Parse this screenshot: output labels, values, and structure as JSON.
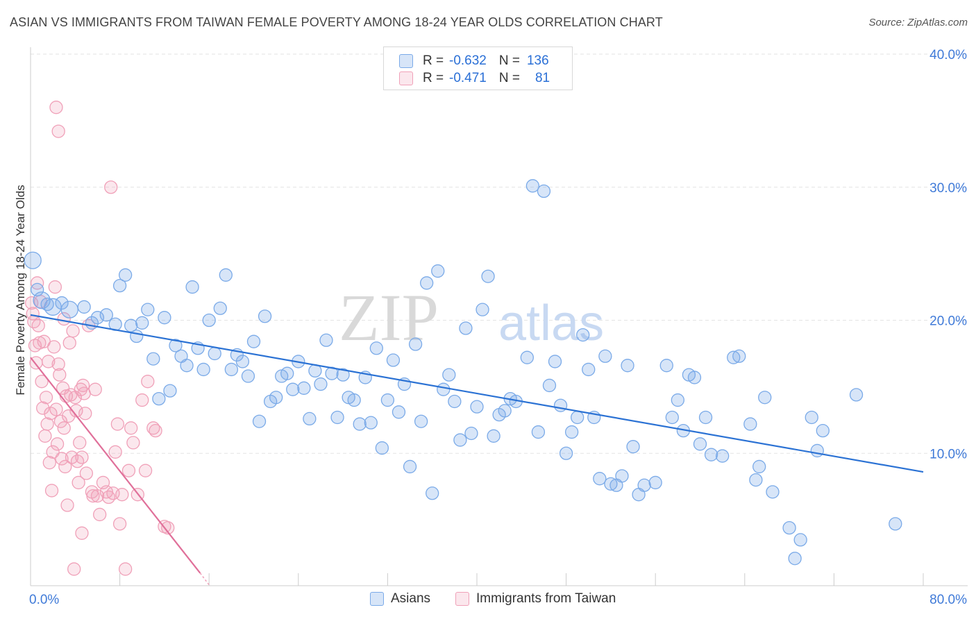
{
  "title": "ASIAN VS IMMIGRANTS FROM TAIWAN FEMALE POVERTY AMONG 18-24 YEAR OLDS CORRELATION CHART",
  "source": "Source: ZipAtlas.com",
  "watermark": {
    "left": "ZIP",
    "right": "atlas"
  },
  "legend_top": [
    {
      "r_label": "R =",
      "r_value": "-0.632",
      "n_label": "N =",
      "n_value": "136",
      "color": "#7aaae8"
    },
    {
      "r_label": "R =",
      "r_value": "-0.471",
      "n_label": "N =",
      "n_value": "81",
      "color": "#f0a0b8"
    }
  ],
  "legend_bottom": [
    {
      "label": "Asians",
      "color": "#7aaae8"
    },
    {
      "label": "Immigrants from Taiwan",
      "color": "#f0a0b8"
    }
  ],
  "colors": {
    "blue_fill": "rgba(122,170,232,0.30)",
    "blue_stroke": "#7aaae8",
    "blue_line": "#2b72d4",
    "pink_fill": "rgba(240,160,184,0.25)",
    "pink_stroke": "#f0a0b8",
    "pink_line": "#e0709a",
    "tick_text": "#3f7ad8"
  },
  "chart_data": {
    "type": "scatter",
    "title": "ASIAN VS IMMIGRANTS FROM TAIWAN FEMALE POVERTY AMONG 18-24 YEAR OLDS CORRELATION CHART",
    "xlabel": "",
    "ylabel": "Female Poverty Among 18-24 Year Olds",
    "xlim": [
      0,
      80
    ],
    "ylim": [
      0,
      40
    ],
    "x_tick_labels": [
      "0.0%",
      "80.0%"
    ],
    "y_ticks": [
      10,
      20,
      30,
      40
    ],
    "y_tick_labels": [
      "10.0%",
      "20.0%",
      "30.0%",
      "40.0%"
    ],
    "grid": "horizontal dashed",
    "legend": "top-center",
    "series": [
      {
        "name": "Asians",
        "r": -0.632,
        "n": 136,
        "trend": {
          "x": [
            0,
            80
          ],
          "y": [
            20.4,
            8.6
          ]
        },
        "points": [
          [
            0.2,
            24.5,
            2
          ],
          [
            0.6,
            22.3,
            1
          ],
          [
            1.0,
            21.5,
            2
          ],
          [
            1.5,
            21.2,
            1
          ],
          [
            2.0,
            21.0,
            2
          ],
          [
            2.8,
            21.3,
            1
          ],
          [
            3.5,
            20.8,
            2
          ],
          [
            4.8,
            21.0,
            1
          ],
          [
            5.5,
            19.8,
            1
          ],
          [
            6.0,
            20.2,
            1
          ],
          [
            6.8,
            20.4,
            1
          ],
          [
            7.6,
            19.7,
            1
          ],
          [
            8.0,
            22.6,
            1
          ],
          [
            8.5,
            23.4,
            1
          ],
          [
            9.0,
            19.6,
            1
          ],
          [
            9.5,
            18.8,
            1
          ],
          [
            10.0,
            19.8,
            1
          ],
          [
            10.5,
            20.8,
            1
          ],
          [
            11.0,
            17.1,
            1
          ],
          [
            11.5,
            14.1,
            1
          ],
          [
            12.0,
            20.2,
            1
          ],
          [
            12.5,
            14.7,
            1
          ],
          [
            13.0,
            18.1,
            1
          ],
          [
            13.5,
            17.3,
            1
          ],
          [
            14.0,
            16.6,
            1
          ],
          [
            14.5,
            22.5,
            1
          ],
          [
            15.0,
            17.9,
            1
          ],
          [
            15.5,
            16.3,
            1
          ],
          [
            16.0,
            20.0,
            1
          ],
          [
            16.5,
            17.5,
            1
          ],
          [
            17.0,
            20.9,
            1
          ],
          [
            17.5,
            23.4,
            1
          ],
          [
            18.0,
            16.3,
            1
          ],
          [
            18.5,
            17.4,
            1
          ],
          [
            19.0,
            16.9,
            1
          ],
          [
            19.5,
            15.8,
            1
          ],
          [
            20.0,
            18.4,
            1
          ],
          [
            20.5,
            12.4,
            1
          ],
          [
            21.0,
            20.3,
            1
          ],
          [
            21.5,
            13.9,
            1
          ],
          [
            22.0,
            14.2,
            1
          ],
          [
            22.5,
            15.8,
            1
          ],
          [
            23.0,
            16.0,
            1
          ],
          [
            23.5,
            14.8,
            1
          ],
          [
            24.0,
            16.9,
            1
          ],
          [
            24.5,
            14.9,
            1
          ],
          [
            25.0,
            12.6,
            1
          ],
          [
            25.5,
            16.2,
            1
          ],
          [
            26.0,
            15.2,
            1
          ],
          [
            26.5,
            18.5,
            1
          ],
          [
            27.0,
            16.0,
            1
          ],
          [
            27.5,
            12.7,
            1
          ],
          [
            28.0,
            15.9,
            1
          ],
          [
            28.5,
            14.2,
            1
          ],
          [
            29.0,
            14.0,
            1
          ],
          [
            29.5,
            12.2,
            1
          ],
          [
            30.0,
            15.7,
            1
          ],
          [
            30.5,
            12.3,
            1
          ],
          [
            31.0,
            17.9,
            1
          ],
          [
            31.5,
            10.4,
            1
          ],
          [
            32.0,
            14.0,
            1
          ],
          [
            32.5,
            17.0,
            1
          ],
          [
            33.0,
            13.1,
            1
          ],
          [
            33.5,
            15.2,
            1
          ],
          [
            34.0,
            9.0,
            1
          ],
          [
            34.5,
            18.2,
            1
          ],
          [
            35.0,
            12.4,
            1
          ],
          [
            35.5,
            22.8,
            1
          ],
          [
            36.0,
            7.0,
            1
          ],
          [
            36.5,
            23.7,
            1
          ],
          [
            37.0,
            14.8,
            1
          ],
          [
            37.5,
            15.9,
            1
          ],
          [
            38.0,
            13.9,
            1
          ],
          [
            38.5,
            11.0,
            1
          ],
          [
            39.0,
            19.4,
            1
          ],
          [
            39.5,
            11.5,
            1
          ],
          [
            40.0,
            13.5,
            1
          ],
          [
            40.5,
            20.8,
            1
          ],
          [
            41.0,
            23.3,
            1
          ],
          [
            41.5,
            11.3,
            1
          ],
          [
            42.0,
            12.9,
            1
          ],
          [
            42.5,
            13.2,
            1
          ],
          [
            43.0,
            14.1,
            1
          ],
          [
            43.5,
            13.9,
            1
          ],
          [
            44.5,
            17.2,
            1
          ],
          [
            45.0,
            30.1,
            1
          ],
          [
            45.5,
            11.6,
            1
          ],
          [
            46.0,
            29.7,
            1
          ],
          [
            46.5,
            15.1,
            1
          ],
          [
            47.0,
            16.9,
            1
          ],
          [
            47.5,
            13.6,
            1
          ],
          [
            48.0,
            10.0,
            1
          ],
          [
            48.5,
            11.6,
            1
          ],
          [
            49.0,
            12.7,
            1
          ],
          [
            49.5,
            18.9,
            1
          ],
          [
            50.0,
            16.3,
            1
          ],
          [
            50.5,
            12.7,
            1
          ],
          [
            51.0,
            8.1,
            1
          ],
          [
            51.5,
            17.3,
            1
          ],
          [
            52.0,
            7.7,
            1
          ],
          [
            52.5,
            7.6,
            1
          ],
          [
            53.0,
            8.3,
            1
          ],
          [
            53.5,
            16.6,
            1
          ],
          [
            54.0,
            10.5,
            1
          ],
          [
            54.5,
            6.9,
            1
          ],
          [
            55.0,
            7.6,
            1
          ],
          [
            56.0,
            7.8,
            1
          ],
          [
            57.0,
            16.6,
            1
          ],
          [
            57.5,
            12.7,
            1
          ],
          [
            58.0,
            14.0,
            1
          ],
          [
            58.5,
            11.7,
            1
          ],
          [
            59.0,
            15.9,
            1
          ],
          [
            59.5,
            15.7,
            1
          ],
          [
            60.0,
            10.7,
            1
          ],
          [
            60.5,
            12.7,
            1
          ],
          [
            61.0,
            9.9,
            1
          ],
          [
            62.0,
            9.8,
            1
          ],
          [
            63.0,
            17.2,
            1
          ],
          [
            63.5,
            17.3,
            1
          ],
          [
            64.5,
            12.2,
            1
          ],
          [
            65.0,
            8.0,
            1
          ],
          [
            65.3,
            9.0,
            1
          ],
          [
            65.8,
            14.2,
            1
          ],
          [
            66.5,
            7.1,
            1
          ],
          [
            68.0,
            4.4,
            1
          ],
          [
            68.5,
            2.1,
            1
          ],
          [
            69.0,
            3.5,
            1
          ],
          [
            70.0,
            12.7,
            1
          ],
          [
            70.5,
            10.2,
            1
          ],
          [
            71.0,
            11.7,
            1
          ],
          [
            74.0,
            14.4,
            1
          ],
          [
            77.5,
            4.7,
            1
          ]
        ]
      },
      {
        "name": "Immigrants from Taiwan",
        "r": -0.471,
        "n": 81,
        "trend": {
          "x": [
            0,
            15.2
          ],
          "y": [
            17.2,
            1.0
          ]
        },
        "points": [
          [
            0.1,
            21.3,
            1
          ],
          [
            0.2,
            20.5,
            1
          ],
          [
            0.3,
            19.9,
            1
          ],
          [
            0.4,
            18.1,
            1
          ],
          [
            0.5,
            16.8,
            1
          ],
          [
            0.6,
            22.8,
            1
          ],
          [
            0.7,
            19.6,
            1
          ],
          [
            0.8,
            18.3,
            1
          ],
          [
            0.9,
            21.4,
            1
          ],
          [
            1.0,
            15.4,
            1
          ],
          [
            1.1,
            13.4,
            1
          ],
          [
            1.2,
            18.4,
            1
          ],
          [
            1.3,
            11.3,
            1
          ],
          [
            1.4,
            14.2,
            1
          ],
          [
            1.5,
            12.2,
            1
          ],
          [
            1.6,
            16.9,
            1
          ],
          [
            1.7,
            9.3,
            1
          ],
          [
            1.8,
            13.0,
            1
          ],
          [
            1.9,
            7.2,
            1
          ],
          [
            2.0,
            10.1,
            1
          ],
          [
            2.1,
            18.0,
            1
          ],
          [
            2.2,
            22.5,
            1
          ],
          [
            2.3,
            13.3,
            1
          ],
          [
            2.4,
            10.7,
            1
          ],
          [
            2.5,
            16.7,
            1
          ],
          [
            2.6,
            15.9,
            1
          ],
          [
            2.7,
            12.4,
            1
          ],
          [
            2.8,
            9.6,
            1
          ],
          [
            2.9,
            14.9,
            1
          ],
          [
            3.0,
            20.1,
            1
          ],
          [
            3.1,
            9.0,
            1
          ],
          [
            3.2,
            14.3,
            1
          ],
          [
            3.3,
            6.1,
            1
          ],
          [
            3.4,
            12.8,
            1
          ],
          [
            3.5,
            18.3,
            1
          ],
          [
            3.6,
            14.4,
            1
          ],
          [
            3.7,
            9.7,
            1
          ],
          [
            3.8,
            19.2,
            1
          ],
          [
            3.9,
            1.3,
            1
          ],
          [
            4.0,
            14.2,
            1
          ],
          [
            4.1,
            13.2,
            1
          ],
          [
            4.2,
            9.4,
            1
          ],
          [
            4.3,
            7.8,
            1
          ],
          [
            4.4,
            10.8,
            1
          ],
          [
            4.5,
            14.8,
            1
          ],
          [
            4.6,
            4.0,
            1
          ],
          [
            4.7,
            15.1,
            1
          ],
          [
            4.8,
            14.5,
            1
          ],
          [
            4.9,
            13.0,
            1
          ],
          [
            5.0,
            8.5,
            1
          ],
          [
            5.2,
            19.6,
            1
          ],
          [
            5.5,
            7.1,
            1
          ],
          [
            5.8,
            14.8,
            1
          ],
          [
            6.0,
            6.8,
            1
          ],
          [
            6.2,
            5.4,
            1
          ],
          [
            6.5,
            7.8,
            1
          ],
          [
            6.8,
            7.1,
            1
          ],
          [
            7.0,
            6.7,
            1
          ],
          [
            7.2,
            30.0,
            1
          ],
          [
            7.4,
            7.0,
            1
          ],
          [
            7.6,
            10.1,
            1
          ],
          [
            7.8,
            12.2,
            1
          ],
          [
            8.0,
            4.7,
            1
          ],
          [
            8.2,
            6.9,
            1
          ],
          [
            8.5,
            1.3,
            1
          ],
          [
            8.8,
            8.7,
            1
          ],
          [
            9.0,
            11.9,
            1
          ],
          [
            9.2,
            10.8,
            1
          ],
          [
            9.6,
            6.9,
            1
          ],
          [
            10.0,
            14.0,
            1
          ],
          [
            10.3,
            8.7,
            1
          ],
          [
            10.5,
            15.4,
            1
          ],
          [
            11.0,
            11.9,
            1
          ],
          [
            11.2,
            11.7,
            1
          ],
          [
            12.0,
            4.5,
            1
          ],
          [
            12.3,
            4.4,
            1
          ],
          [
            2.3,
            36.0,
            1
          ],
          [
            2.5,
            34.2,
            1
          ],
          [
            4.6,
            9.7,
            1
          ],
          [
            3.0,
            11.9,
            1
          ],
          [
            5.6,
            6.8,
            1
          ]
        ]
      }
    ]
  }
}
